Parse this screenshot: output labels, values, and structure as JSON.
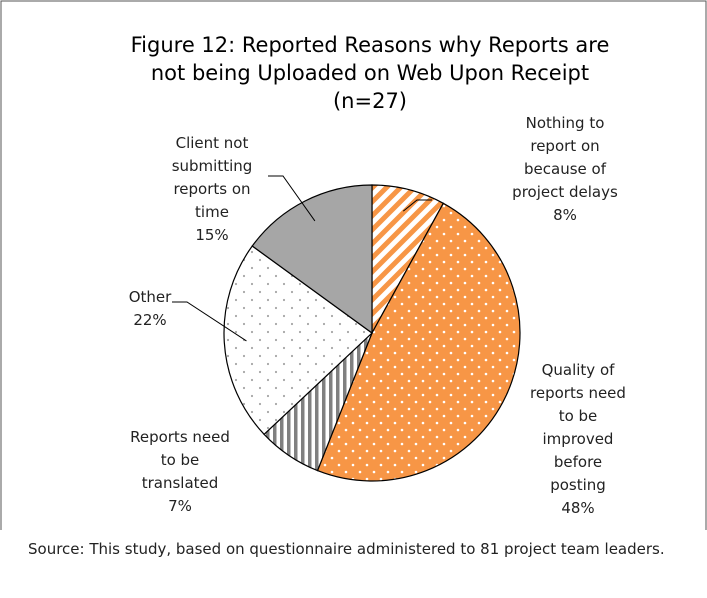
{
  "chart_data": {
    "type": "pie",
    "title": [
      "Figure 12: Reported Reasons why Reports are",
      "not being Uploaded on Web Upon Receipt",
      "(n=27)"
    ],
    "categories": [
      [
        "Nothing to",
        "report on",
        "because of",
        "project delays"
      ],
      [
        "Quality of",
        "reports need",
        "to be",
        "improved",
        "before",
        "posting"
      ],
      [
        "Reports need",
        "to be",
        "translated"
      ],
      [
        "Other"
      ],
      [
        "Client not",
        "submitting",
        "reports on",
        "time"
      ]
    ],
    "values": [
      8,
      48,
      7,
      22,
      15
    ],
    "value_labels": [
      "8%",
      "48%",
      "7%",
      "22%",
      "15%"
    ],
    "colors": [
      "#f79646",
      "#f79646",
      "#808080",
      "#a6a6a6",
      "#a6a6a6"
    ],
    "source": "Source: This study, based on questionnaire administered to 81 project team leaders."
  }
}
